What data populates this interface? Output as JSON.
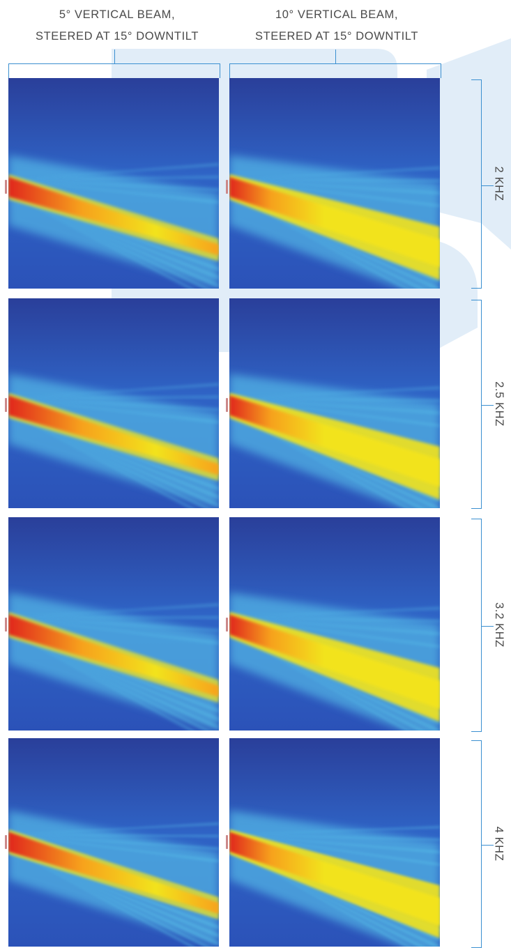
{
  "columns": [
    {
      "title": "5° VERTICAL BEAM,\nSTEERED AT 15° DOWNTILT"
    },
    {
      "title": "10° VERTICAL BEAM,\nSTEERED AT 15° DOWNTILT"
    }
  ],
  "rows": [
    {
      "label": "2 KHZ"
    },
    {
      "label": "2.5 KHZ"
    },
    {
      "label": "3.2 KHZ"
    },
    {
      "label": "4 KHZ"
    }
  ],
  "colors": {
    "background_dark": "#2a3f9a",
    "background_mid": "#2f63c5",
    "beam_cyan": "#5fd0f0",
    "beam_yellow": "#f2e31c",
    "beam_orange": "#f7a21a",
    "beam_red": "#e0261a",
    "bracket": "#3a8fd0",
    "decor_shape": "#dcebf7"
  }
}
